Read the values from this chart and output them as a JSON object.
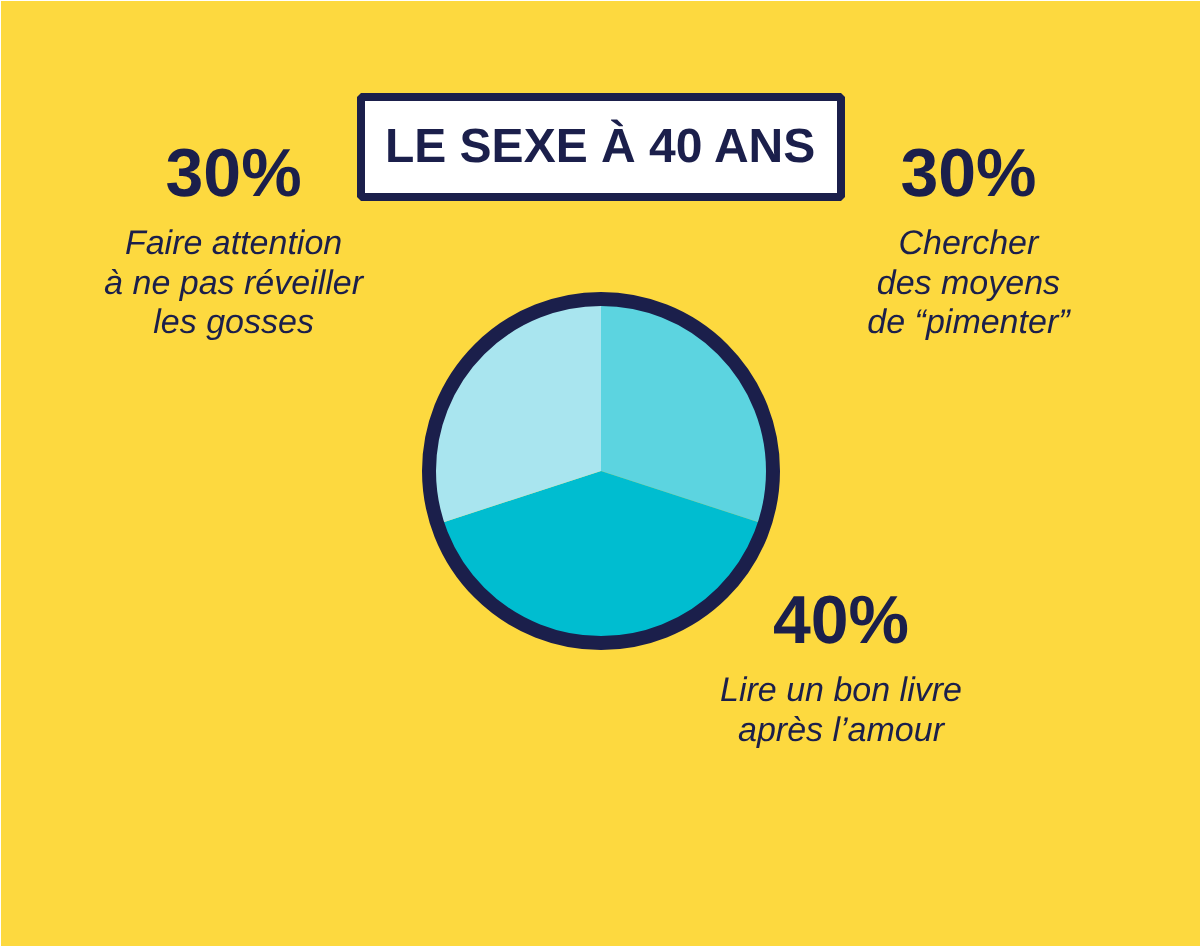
{
  "chart_data": {
    "type": "pie",
    "title": "LE SEXE À 40 ANS",
    "categories": [
      "Chercher\ndes moyens\nde “pimenter”",
      "Lire un bon livre\naprès l’amour",
      "Faire attention\nà ne pas réveiller\nles gosses"
    ],
    "values": [
      30,
      40,
      30
    ],
    "colors": [
      "#5cd4e0",
      "#00bdd0",
      "#a9e5ef"
    ],
    "value_labels": [
      "30%",
      "40%",
      "30%"
    ]
  }
}
